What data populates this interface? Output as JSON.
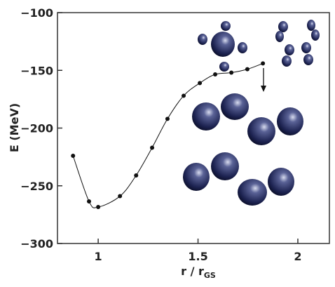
{
  "chart_data": {
    "type": "line",
    "ylabel": "E (MeV)",
    "xlabel": "r / r",
    "xlabel_sub": "GS",
    "x": [
      0.874,
      0.954,
      1.0,
      1.109,
      1.19,
      1.27,
      1.347,
      1.428,
      1.509,
      1.586,
      1.667,
      1.747,
      1.825
    ],
    "series": [
      {
        "color": "#111111",
        "values": [
          -224,
          -263.5,
          -268.4,
          -259,
          -241,
          -217,
          -192,
          -172,
          -161,
          -153.5,
          -152,
          -149,
          -144
        ]
      }
    ],
    "xlim": [
      0.796,
      2.158
    ],
    "xticks": [
      1,
      1.5,
      2
    ],
    "ylim": [
      -300,
      -100
    ],
    "yticks": [
      {
        "value": -100,
        "label": "−100"
      },
      {
        "value": -150,
        "label": "−150"
      },
      {
        "value": -200,
        "label": "−200"
      },
      {
        "value": -250,
        "label": "−250"
      },
      {
        "value": -300,
        "label": "−300"
      }
    ]
  }
}
